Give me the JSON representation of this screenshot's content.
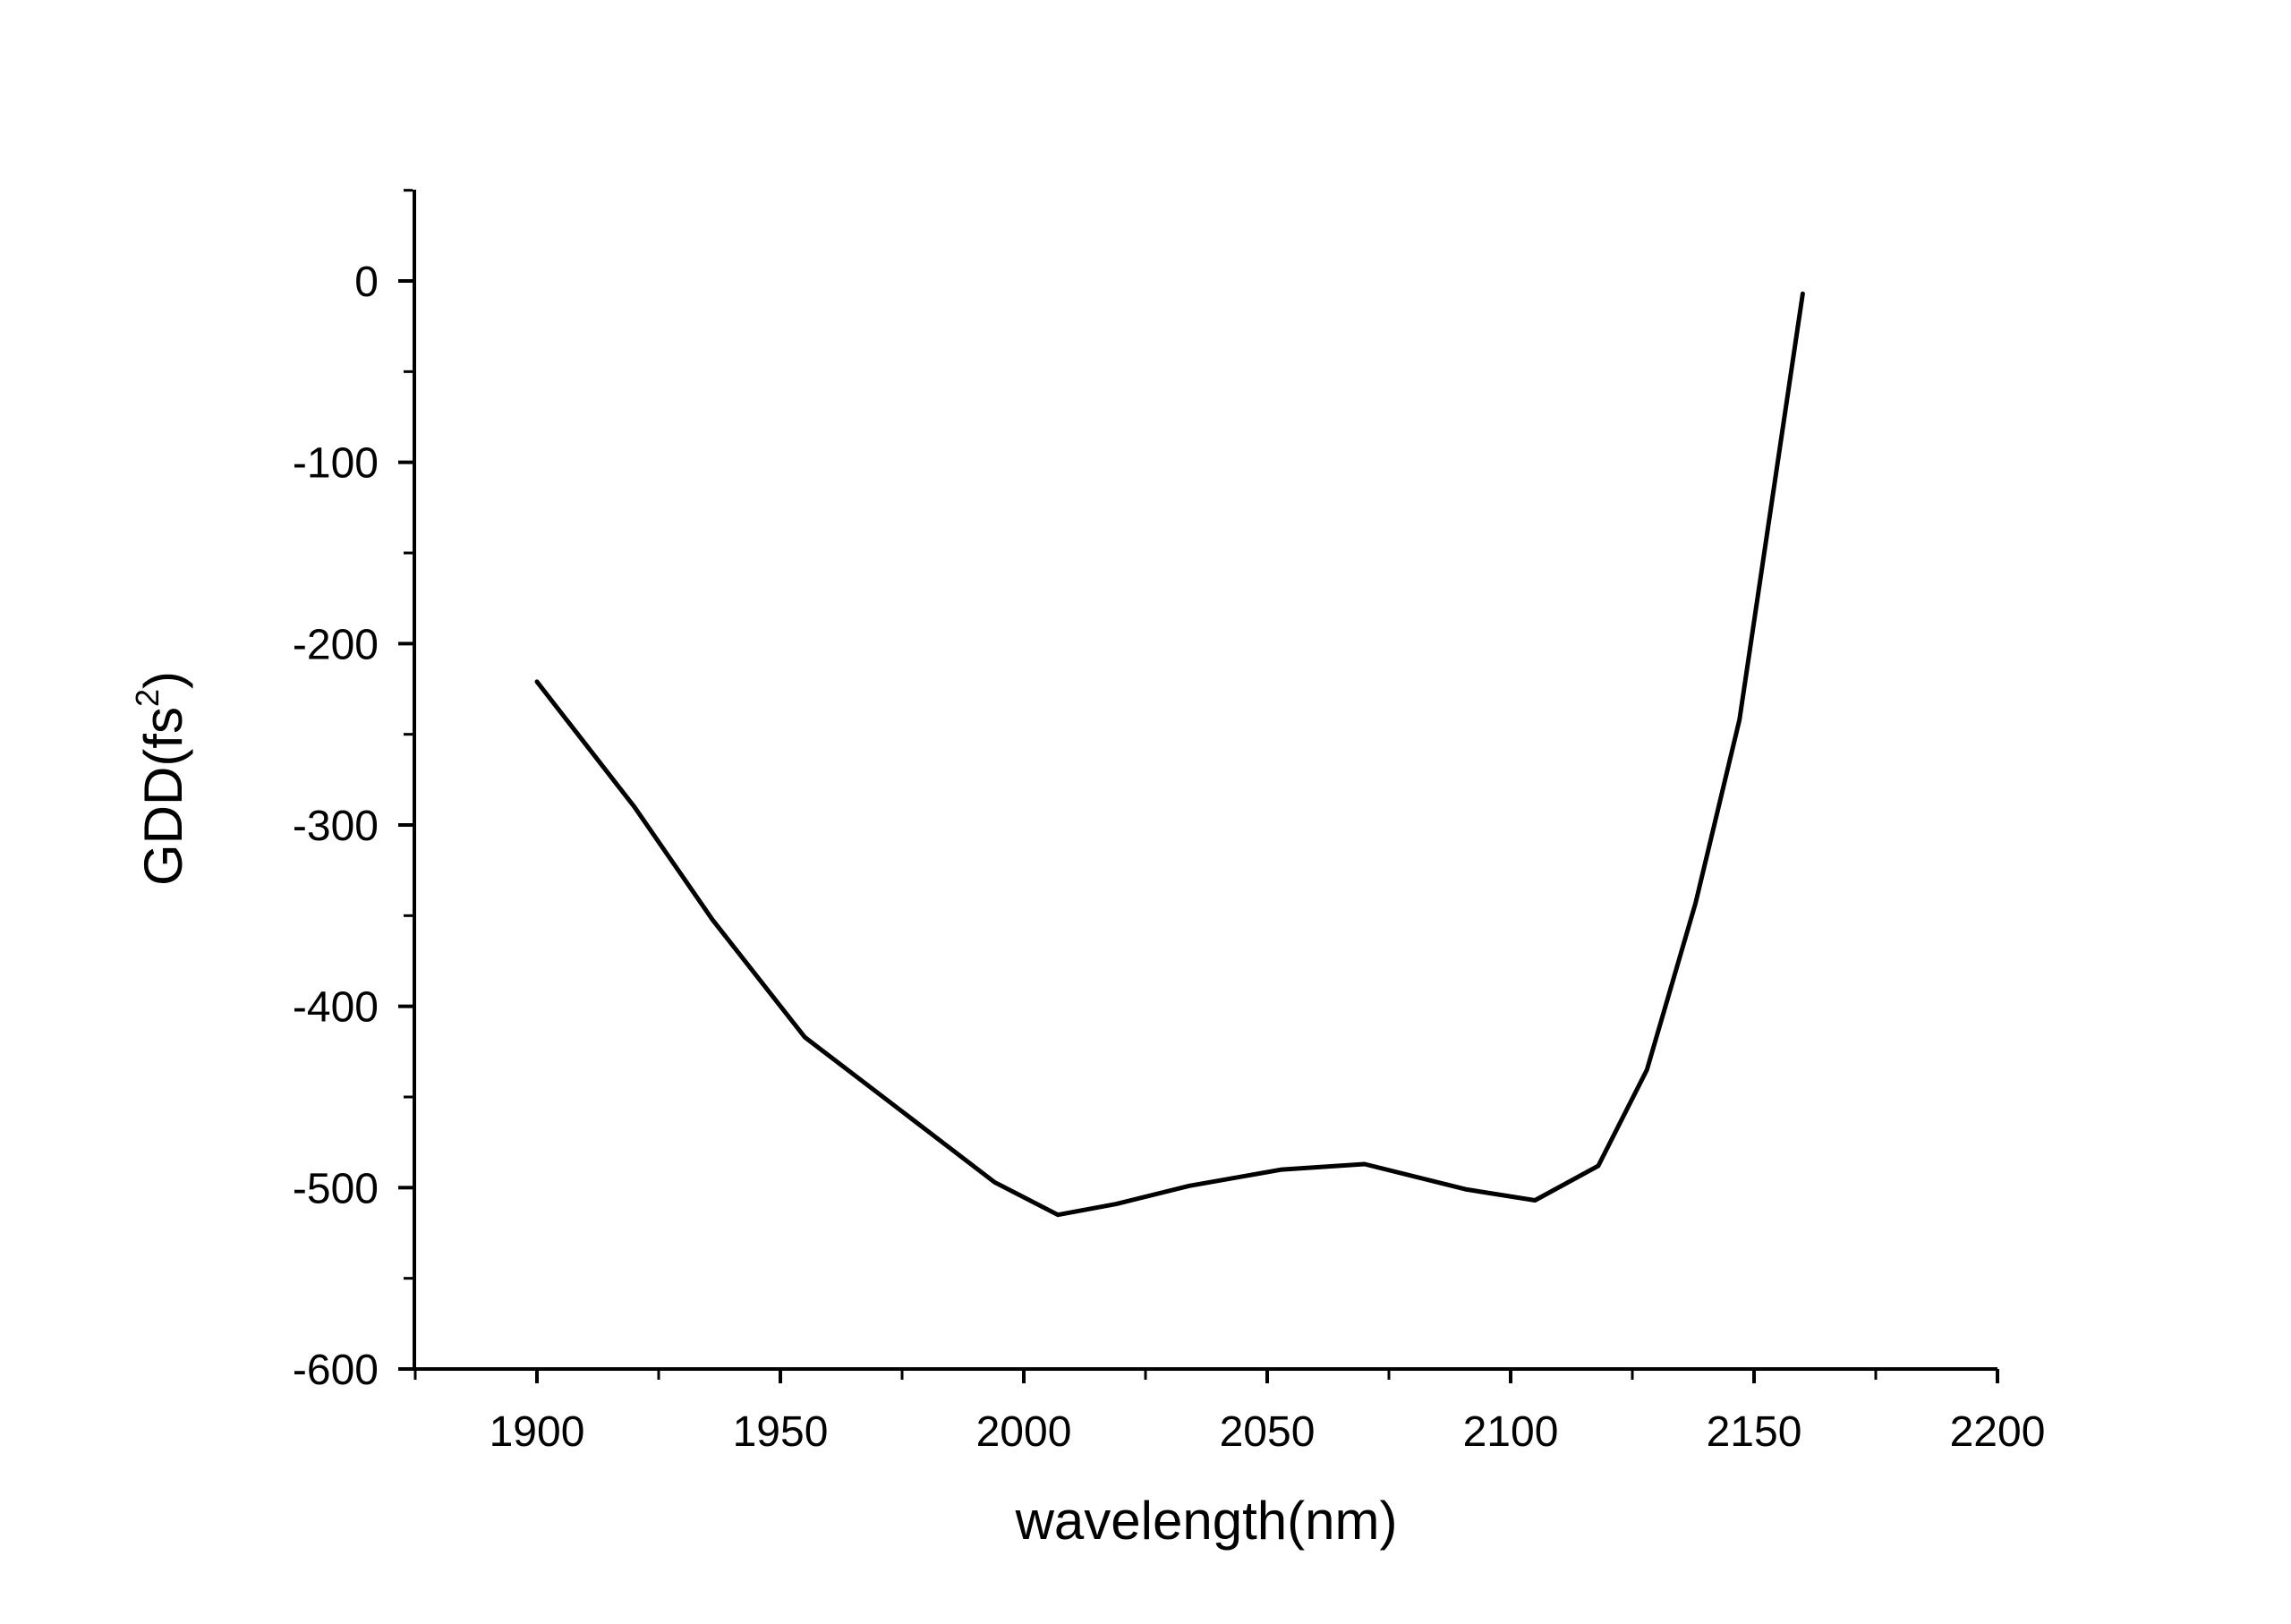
{
  "chart_data": {
    "type": "line",
    "title": "",
    "xlabel": "wavelength(nm)",
    "ylabel": {
      "main": "GDD(fs",
      "superscript": "2",
      "close": ")"
    },
    "xlim": [
      1875,
      2200
    ],
    "ylim": [
      -600,
      50
    ],
    "x_ticks": [
      1900,
      1950,
      2000,
      2050,
      2100,
      2150,
      2200
    ],
    "x_tick_labels": [
      "1900",
      "1950",
      "2000",
      "2050",
      "2100",
      "2150",
      "2200"
    ],
    "y_ticks": [
      0,
      -100,
      -200,
      -300,
      -400,
      -500,
      -600
    ],
    "y_tick_labels": [
      "0",
      "-100",
      "-200",
      "-300",
      "-400",
      "-500",
      "-600"
    ],
    "grid": false,
    "line_color": "#000000",
    "series": [
      {
        "x": [
          1900,
          1920,
          1936,
          1955,
          1975,
          1994,
          2007,
          2019,
          2034,
          2053,
          2070,
          2091,
          2105,
          2118,
          2128,
          2138,
          2147,
          2160
        ],
        "y": [
          -221,
          -290,
          -352,
          -417,
          -458,
          -497,
          -515,
          -509,
          -499,
          -490,
          -487,
          -501,
          -507,
          -488,
          -435,
          -343,
          -242,
          -7
        ]
      }
    ]
  }
}
